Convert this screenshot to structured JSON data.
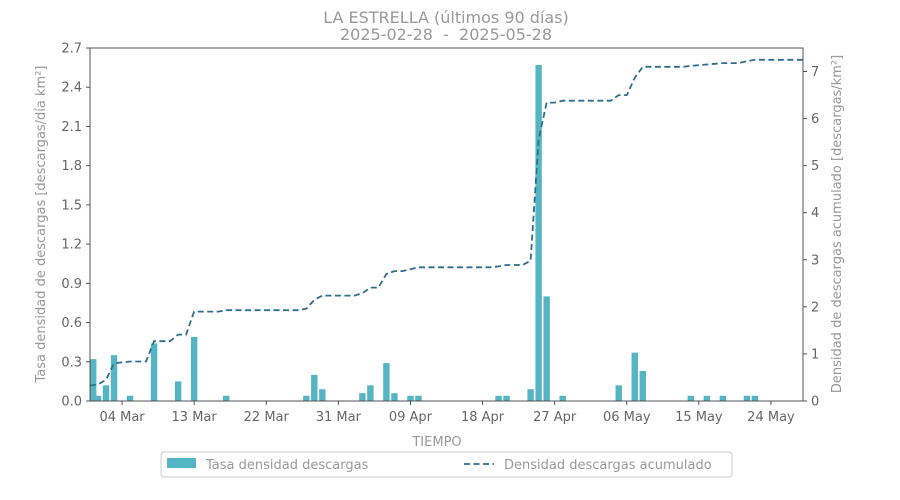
{
  "chart_data": {
    "type": "bar+line",
    "title": "LA ESTRELLA (últimos 90 días)",
    "subtitle": "2025-02-28  -  2025-05-28",
    "xlabel": "TIEMPO",
    "ylabel_left": "Tasa densidad de descargas [descargas/día km²]",
    "ylabel_right": "Densidad de descargas acumulado [descargas/km²]",
    "x_start": "2025-02-28",
    "x_end": "2025-05-28",
    "x_ticks": [
      "04 Mar",
      "13 Mar",
      "22 Mar",
      "31 Mar",
      "09 Apr",
      "18 Apr",
      "27 Apr",
      "06 May",
      "15 May",
      "24 May"
    ],
    "x_tick_dates": [
      "2025-03-04",
      "2025-03-13",
      "2025-03-22",
      "2025-03-31",
      "2025-04-09",
      "2025-04-18",
      "2025-04-27",
      "2025-05-06",
      "2025-05-15",
      "2025-05-24"
    ],
    "ylim_left": [
      0,
      2.7
    ],
    "yticks_left": [
      "0.0",
      "0.3",
      "0.6",
      "0.9",
      "1.2",
      "1.5",
      "1.8",
      "2.1",
      "2.4",
      "2.7"
    ],
    "ylim_right": [
      0,
      7.5
    ],
    "yticks_right": [
      "0",
      "1",
      "2",
      "3",
      "4",
      "5",
      "6",
      "7"
    ],
    "legend": [
      "Tasa densidad descargas",
      "Densidad descargas acumulado"
    ],
    "legend_position": "bottom-center",
    "colors": {
      "bar": "#56b5c2",
      "line": "#2e6f8e"
    },
    "series": [
      {
        "name": "Tasa densidad descargas",
        "type": "bar",
        "points": [
          {
            "date": "2025-02-28",
            "value": 0.32
          },
          {
            "date": "2025-03-01",
            "value": 0.04
          },
          {
            "date": "2025-03-02",
            "value": 0.12
          },
          {
            "date": "2025-03-03",
            "value": 0.35
          },
          {
            "date": "2025-03-05",
            "value": 0.04
          },
          {
            "date": "2025-03-08",
            "value": 0.44
          },
          {
            "date": "2025-03-11",
            "value": 0.15
          },
          {
            "date": "2025-03-13",
            "value": 0.49
          },
          {
            "date": "2025-03-17",
            "value": 0.04
          },
          {
            "date": "2025-03-27",
            "value": 0.04
          },
          {
            "date": "2025-03-28",
            "value": 0.2
          },
          {
            "date": "2025-03-29",
            "value": 0.09
          },
          {
            "date": "2025-04-03",
            "value": 0.06
          },
          {
            "date": "2025-04-04",
            "value": 0.12
          },
          {
            "date": "2025-04-06",
            "value": 0.29
          },
          {
            "date": "2025-04-07",
            "value": 0.06
          },
          {
            "date": "2025-04-09",
            "value": 0.04
          },
          {
            "date": "2025-04-10",
            "value": 0.04
          },
          {
            "date": "2025-04-20",
            "value": 0.04
          },
          {
            "date": "2025-04-21",
            "value": 0.04
          },
          {
            "date": "2025-04-24",
            "value": 0.09
          },
          {
            "date": "2025-04-25",
            "value": 2.57
          },
          {
            "date": "2025-04-26",
            "value": 0.8
          },
          {
            "date": "2025-04-28",
            "value": 0.04
          },
          {
            "date": "2025-05-05",
            "value": 0.12
          },
          {
            "date": "2025-05-07",
            "value": 0.37
          },
          {
            "date": "2025-05-08",
            "value": 0.23
          },
          {
            "date": "2025-05-14",
            "value": 0.04
          },
          {
            "date": "2025-05-16",
            "value": 0.04
          },
          {
            "date": "2025-05-18",
            "value": 0.04
          },
          {
            "date": "2025-05-21",
            "value": 0.04
          },
          {
            "date": "2025-05-22",
            "value": 0.04
          }
        ]
      },
      {
        "name": "Densidad descargas acumulado",
        "type": "line",
        "points": [
          {
            "date": "2025-02-28",
            "value": 0.33
          },
          {
            "date": "2025-03-01",
            "value": 0.35
          },
          {
            "date": "2025-03-02",
            "value": 0.45
          },
          {
            "date": "2025-03-03",
            "value": 0.8
          },
          {
            "date": "2025-03-04",
            "value": 0.82
          },
          {
            "date": "2025-03-05",
            "value": 0.84
          },
          {
            "date": "2025-03-07",
            "value": 0.84
          },
          {
            "date": "2025-03-08",
            "value": 1.27
          },
          {
            "date": "2025-03-10",
            "value": 1.27
          },
          {
            "date": "2025-03-11",
            "value": 1.41
          },
          {
            "date": "2025-03-12",
            "value": 1.41
          },
          {
            "date": "2025-03-13",
            "value": 1.9
          },
          {
            "date": "2025-03-16",
            "value": 1.9
          },
          {
            "date": "2025-03-17",
            "value": 1.93
          },
          {
            "date": "2025-03-26",
            "value": 1.93
          },
          {
            "date": "2025-03-27",
            "value": 1.96
          },
          {
            "date": "2025-03-28",
            "value": 2.15
          },
          {
            "date": "2025-03-29",
            "value": 2.24
          },
          {
            "date": "2025-04-02",
            "value": 2.24
          },
          {
            "date": "2025-04-03",
            "value": 2.29
          },
          {
            "date": "2025-04-04",
            "value": 2.41
          },
          {
            "date": "2025-04-05",
            "value": 2.41
          },
          {
            "date": "2025-04-06",
            "value": 2.7
          },
          {
            "date": "2025-04-07",
            "value": 2.76
          },
          {
            "date": "2025-04-08",
            "value": 2.76
          },
          {
            "date": "2025-04-09",
            "value": 2.8
          },
          {
            "date": "2025-04-10",
            "value": 2.84
          },
          {
            "date": "2025-04-19",
            "value": 2.84
          },
          {
            "date": "2025-04-20",
            "value": 2.86
          },
          {
            "date": "2025-04-21",
            "value": 2.89
          },
          {
            "date": "2025-04-23",
            "value": 2.89
          },
          {
            "date": "2025-04-24",
            "value": 2.98
          },
          {
            "date": "2025-04-25",
            "value": 5.55
          },
          {
            "date": "2025-04-26",
            "value": 6.34
          },
          {
            "date": "2025-04-27",
            "value": 6.34
          },
          {
            "date": "2025-04-28",
            "value": 6.38
          },
          {
            "date": "2025-05-04",
            "value": 6.38
          },
          {
            "date": "2025-05-05",
            "value": 6.5
          },
          {
            "date": "2025-05-06",
            "value": 6.5
          },
          {
            "date": "2025-05-07",
            "value": 6.87
          },
          {
            "date": "2025-05-08",
            "value": 7.1
          },
          {
            "date": "2025-05-13",
            "value": 7.1
          },
          {
            "date": "2025-05-14",
            "value": 7.12
          },
          {
            "date": "2025-05-16",
            "value": 7.15
          },
          {
            "date": "2025-05-18",
            "value": 7.18
          },
          {
            "date": "2025-05-20",
            "value": 7.18
          },
          {
            "date": "2025-05-21",
            "value": 7.22
          },
          {
            "date": "2025-05-22",
            "value": 7.25
          },
          {
            "date": "2025-05-28",
            "value": 7.25
          }
        ]
      }
    ]
  }
}
